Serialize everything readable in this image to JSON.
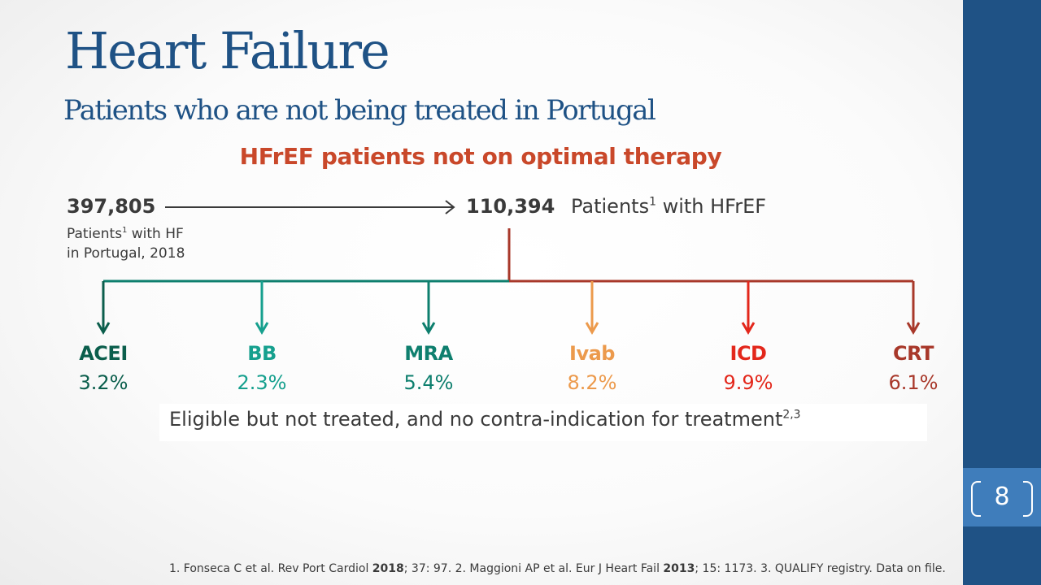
{
  "slide": {
    "title": "Heart Failure",
    "subtitle": "Patients who are not being treated in Portugal",
    "headline": "HFrEF patients not on optimal therapy",
    "page_number": "8"
  },
  "flow": {
    "total": {
      "value": "397,805",
      "label_prefix": "Patients",
      "label_sup": "1",
      "label_suffix": " with HF",
      "label_line2": "in Portugal, 2018"
    },
    "hfref": {
      "value": "110,394",
      "label_prefix": "Patients",
      "label_sup": "1",
      "label_suffix": " with HFrEF"
    }
  },
  "therapies": [
    {
      "name": "ACEI",
      "value": "3.2%",
      "color": "#0b5e4c"
    },
    {
      "name": "BB",
      "value": "2.3%",
      "color": "#16a08e"
    },
    {
      "name": "MRA",
      "value": "5.4%",
      "color": "#0e7f6e"
    },
    {
      "name": "Ivab",
      "value": "8.2%",
      "color": "#ec9a4c"
    },
    {
      "name": "ICD",
      "value": "9.9%",
      "color": "#e3271b"
    },
    {
      "name": "CRT",
      "value": "6.1%",
      "color": "#a8382a"
    }
  ],
  "eligible": {
    "text": "Eligible but not treated, and no contra-indication for treatment",
    "sup": "2,3"
  },
  "footnote": {
    "p1": "1. Fonseca C et al. Rev Port Cardiol ",
    "b1": "2018",
    "p2": "; 37: 97. 2. Maggioni AP et al. Eur J Heart Fail ",
    "b2": "2013",
    "p3": "; 15: 1173. 3. QUALIFY registry. Data on file."
  },
  "colors": {
    "title": "#1f5285",
    "headline": "#c9482a",
    "sidebar": "#1f5285",
    "page_box": "#3f7dbb",
    "left_branch": "#0e7f6e",
    "right_branch": "#a8382a"
  }
}
